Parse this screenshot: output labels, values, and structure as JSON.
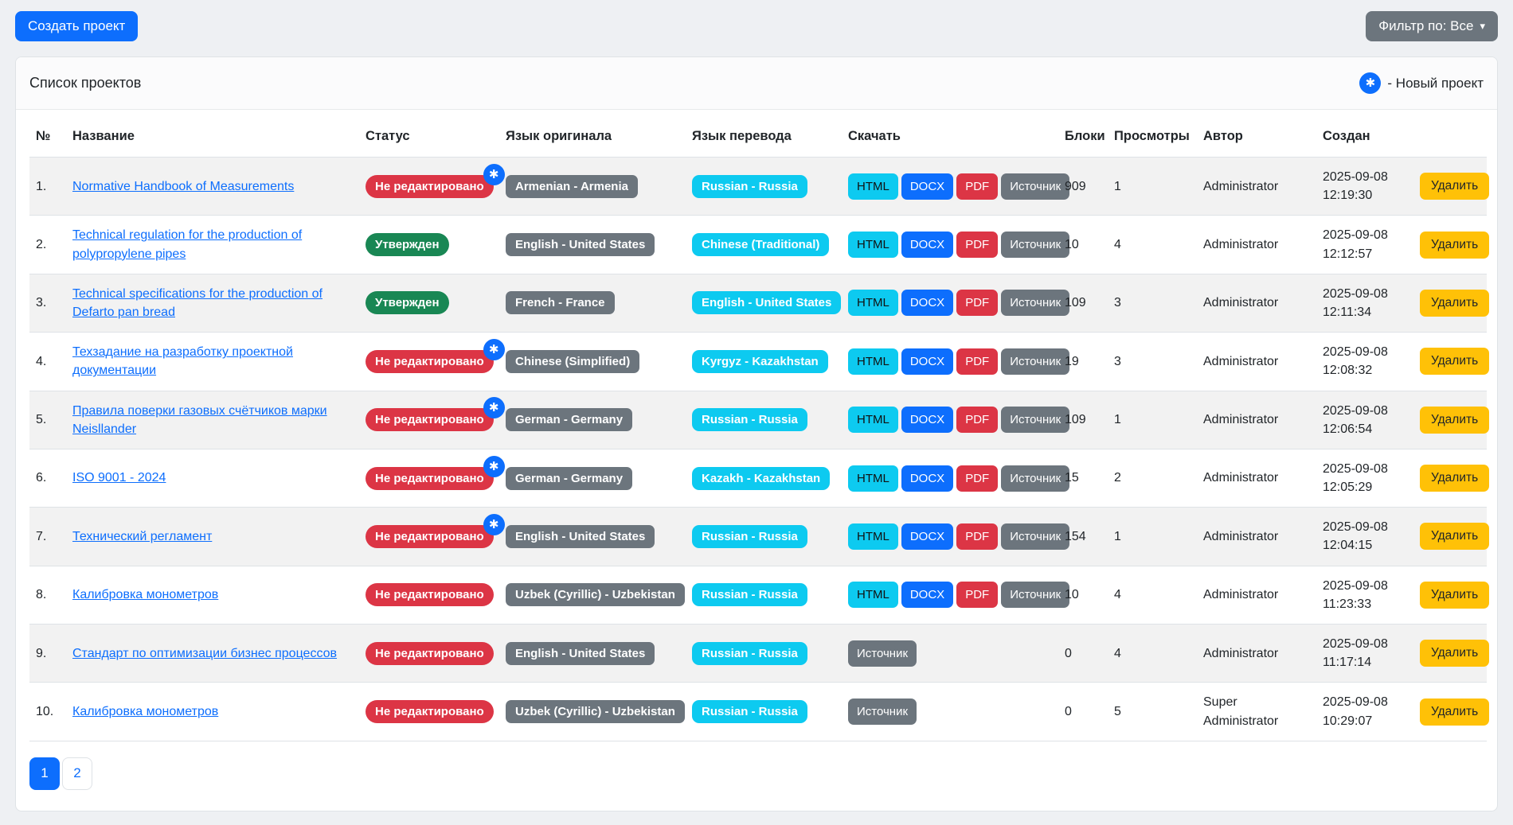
{
  "toolbar": {
    "create_button": "Создать проект",
    "filter_button": "Фильтр по: Все",
    "filter_caret": "▾"
  },
  "card": {
    "title": "Список проектов",
    "legend_icon": "✱",
    "legend_text": "- Новый проект"
  },
  "colors": {
    "primary": "#0d6efd",
    "info": "#0dcaf0",
    "danger": "#dc3545",
    "success": "#198754",
    "secondary": "#6c757d",
    "warning": "#ffc107"
  },
  "table": {
    "headers": {
      "num": "№",
      "name": "Название",
      "status": "Статус",
      "source_lang": "Язык оригинала",
      "target_lang": "Язык перевода",
      "download": "Скачать",
      "blocks": "Блоки",
      "views": "Просмотры",
      "author": "Автор",
      "created": "Создан",
      "actions": ""
    },
    "download_labels": {
      "html": "HTML",
      "docx": "DOCX",
      "pdf": "PDF",
      "source": "Источник"
    },
    "delete_label": "Удалить",
    "new_badge_icon": "✱",
    "rows": [
      {
        "num": "1.",
        "name": "Normative Handbook of Measurements",
        "status": "Не редактировано",
        "status_variant": "danger",
        "is_new": true,
        "source_lang": "Armenian - Armenia",
        "target_lang": "Russian - Russia",
        "downloads": [
          "html",
          "docx",
          "pdf",
          "source"
        ],
        "blocks": "909",
        "views": "1",
        "author": "Administrator",
        "created": "2025-09-08 12:19:30"
      },
      {
        "num": "2.",
        "name": "Technical regulation for the production of polypropylene pipes",
        "status": "Утвержден",
        "status_variant": "success",
        "is_new": false,
        "source_lang": "English - United States",
        "target_lang": "Chinese (Traditional)",
        "downloads": [
          "html",
          "docx",
          "pdf",
          "source"
        ],
        "blocks": "10",
        "views": "4",
        "author": "Administrator",
        "created": "2025-09-08 12:12:57"
      },
      {
        "num": "3.",
        "name": "Technical specifications for the production of Defarto pan bread",
        "status": "Утвержден",
        "status_variant": "success",
        "is_new": false,
        "source_lang": "French - France",
        "target_lang": "English - United States",
        "downloads": [
          "html",
          "docx",
          "pdf",
          "source"
        ],
        "blocks": "109",
        "views": "3",
        "author": "Administrator",
        "created": "2025-09-08 12:11:34"
      },
      {
        "num": "4.",
        "name": "Техзадание на разработку проектной документации",
        "status": "Не редактировано",
        "status_variant": "danger",
        "is_new": true,
        "source_lang": "Chinese (Simplified)",
        "target_lang": "Kyrgyz - Kazakhstan",
        "downloads": [
          "html",
          "docx",
          "pdf",
          "source"
        ],
        "blocks": "19",
        "views": "3",
        "author": "Administrator",
        "created": "2025-09-08 12:08:32"
      },
      {
        "num": "5.",
        "name": "Правила поверки газовых счётчиков марки Neisllander",
        "status": "Не редактировано",
        "status_variant": "danger",
        "is_new": true,
        "source_lang": "German - Germany",
        "target_lang": "Russian - Russia",
        "downloads": [
          "html",
          "docx",
          "pdf",
          "source"
        ],
        "blocks": "109",
        "views": "1",
        "author": "Administrator",
        "created": "2025-09-08 12:06:54"
      },
      {
        "num": "6.",
        "name": "ISO 9001 - 2024",
        "status": "Не редактировано",
        "status_variant": "danger",
        "is_new": true,
        "source_lang": "German - Germany",
        "target_lang": "Kazakh - Kazakhstan",
        "downloads": [
          "html",
          "docx",
          "pdf",
          "source"
        ],
        "blocks": "15",
        "views": "2",
        "author": "Administrator",
        "created": "2025-09-08 12:05:29"
      },
      {
        "num": "7.",
        "name": "Технический регламент",
        "status": "Не редактировано",
        "status_variant": "danger",
        "is_new": true,
        "source_lang": "English - United States",
        "target_lang": "Russian - Russia",
        "downloads": [
          "html",
          "docx",
          "pdf",
          "source"
        ],
        "blocks": "154",
        "views": "1",
        "author": "Administrator",
        "created": "2025-09-08 12:04:15"
      },
      {
        "num": "8.",
        "name": "Калибровка монометров",
        "status": "Не редактировано",
        "status_variant": "danger",
        "is_new": false,
        "source_lang": "Uzbek (Cyrillic) - Uzbekistan",
        "target_lang": "Russian - Russia",
        "downloads": [
          "html",
          "docx",
          "pdf",
          "source"
        ],
        "blocks": "10",
        "views": "4",
        "author": "Administrator",
        "created": "2025-09-08 11:23:33"
      },
      {
        "num": "9.",
        "name": "Стандарт по оптимизации бизнес процессов",
        "status": "Не редактировано",
        "status_variant": "danger",
        "is_new": false,
        "source_lang": "English - United States",
        "target_lang": "Russian - Russia",
        "downloads": [
          "source"
        ],
        "blocks": "0",
        "views": "4",
        "author": "Administrator",
        "created": "2025-09-08 11:17:14"
      },
      {
        "num": "10.",
        "name": "Калибровка монометров",
        "status": "Не редактировано",
        "status_variant": "danger",
        "is_new": false,
        "source_lang": "Uzbek (Cyrillic) - Uzbekistan",
        "target_lang": "Russian - Russia",
        "downloads": [
          "source"
        ],
        "blocks": "0",
        "views": "5",
        "author": "Super Administrator",
        "created": "2025-09-08 10:29:07"
      }
    ]
  },
  "pagination": {
    "pages": [
      {
        "label": "1",
        "active": true
      },
      {
        "label": "2",
        "active": false
      }
    ]
  }
}
